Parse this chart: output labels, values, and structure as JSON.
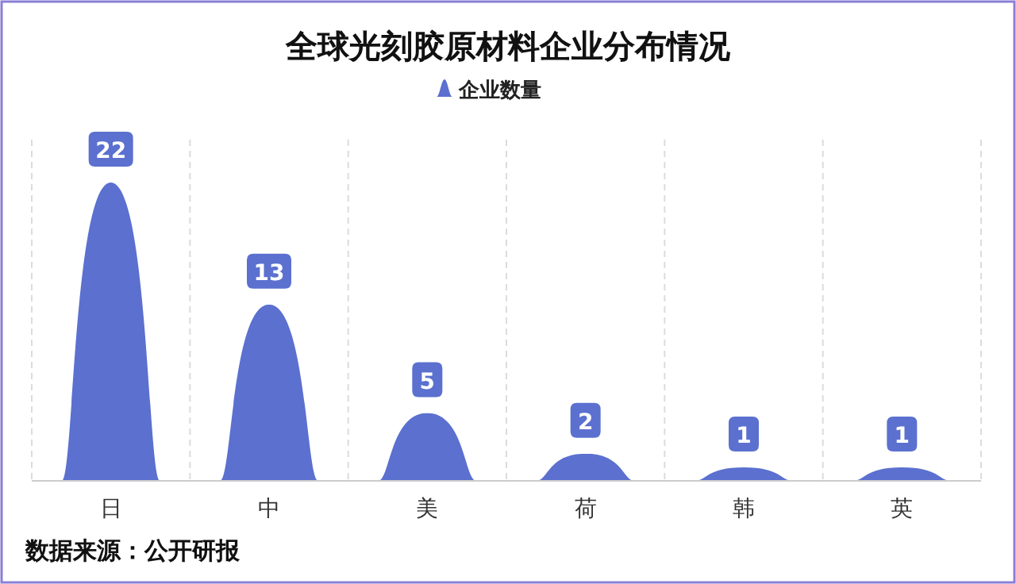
{
  "chart_data": {
    "type": "bar",
    "title": "全球光刻胶原材料企业分布情况",
    "categories": [
      "日",
      "中",
      "美",
      "荷",
      "韩",
      "英"
    ],
    "series": [
      {
        "name": "企业数量",
        "color": "#5b70cf",
        "values": [
          22,
          13,
          5,
          2,
          1,
          1
        ]
      }
    ],
    "data_labels": true,
    "legend": "top",
    "grid": "x",
    "annotations": [
      "数据来源：公开研报"
    ]
  }
}
